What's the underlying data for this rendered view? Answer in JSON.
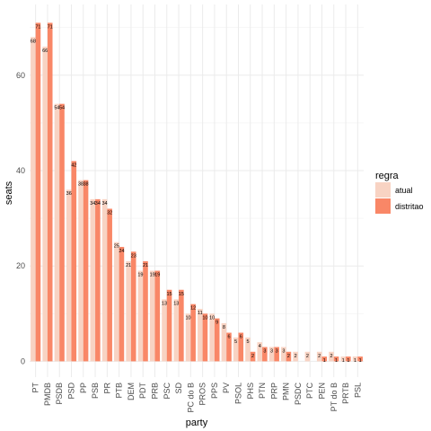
{
  "chart_data": {
    "type": "bar",
    "xlabel": "party",
    "ylabel": "seats",
    "ylim": [
      0,
      72
    ],
    "yticks": [
      0,
      20,
      40,
      60
    ],
    "grid": true,
    "legend": {
      "title": "regra",
      "position": "right"
    },
    "categories": [
      "PT",
      "PMDB",
      "PSDB",
      "PSD",
      "PP",
      "PSB",
      "PR",
      "PTB",
      "DEM",
      "PDT",
      "PRB",
      "PSC",
      "SD",
      "PC do B",
      "PROS",
      "PPS",
      "PV",
      "PSOL",
      "PHS",
      "PTN",
      "PRP",
      "PMN",
      "PSDC",
      "PTC",
      "PEN",
      "PT do B",
      "PRTB",
      "PSL"
    ],
    "series": [
      {
        "name": "atual",
        "color": "#f8d3c3",
        "values": [
          68,
          66,
          54,
          36,
          38,
          34,
          34,
          25,
          21,
          19,
          19,
          13,
          13,
          10,
          11,
          10,
          8,
          5,
          5,
          4,
          3,
          3,
          2,
          2,
          2,
          2,
          1,
          1
        ],
        "labels": [
          "68",
          "66",
          "54",
          "36",
          "38",
          "34",
          "34",
          "25",
          "21",
          "19",
          "19",
          "13",
          "13",
          "10",
          "11",
          "10",
          "8",
          "5",
          "5",
          "4",
          "3",
          "3",
          "2",
          "2",
          "2",
          "2",
          "1",
          "1"
        ]
      },
      {
        "name": "distritao",
        "color": "#f98767",
        "values": [
          71,
          71,
          54,
          42,
          38,
          34,
          32,
          24,
          23,
          21,
          19,
          15,
          15,
          12,
          10,
          9,
          6,
          6,
          2,
          3,
          3,
          2,
          0,
          0,
          1,
          1,
          1,
          1
        ],
        "labels": [
          "71",
          "71",
          "54",
          "42",
          "38",
          "34",
          "32",
          "24",
          "23",
          "21",
          "19",
          "15",
          "15",
          "12",
          "10",
          "9",
          "6",
          "6",
          "2",
          "3",
          "3",
          "2",
          "",
          "",
          "1",
          "1",
          "1",
          "1"
        ]
      }
    ]
  }
}
